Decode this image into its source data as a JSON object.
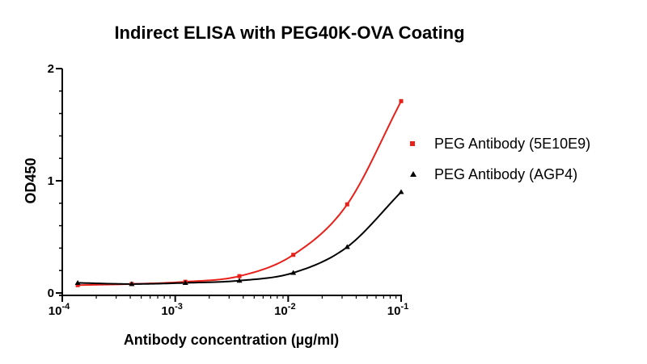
{
  "chart_data": {
    "type": "scatter",
    "title": "Indirect ELISA with PEG40K-OVA Coating",
    "xlabel": "Antibody concentration (µg/ml)",
    "ylabel": "OD450",
    "xscale": "log",
    "xlim": [
      0.0001,
      0.1
    ],
    "ylim": [
      0,
      2
    ],
    "x_ticks": [
      {
        "value": 0.0001,
        "base": "10",
        "exp": "-4"
      },
      {
        "value": 0.001,
        "base": "10",
        "exp": "-3"
      },
      {
        "value": 0.01,
        "base": "10",
        "exp": "-2"
      },
      {
        "value": 0.1,
        "base": "10",
        "exp": "-1"
      }
    ],
    "y_ticks": [
      {
        "value": 0,
        "label": "0"
      },
      {
        "value": 1,
        "label": "1"
      },
      {
        "value": 2,
        "label": "2"
      }
    ],
    "grid": false,
    "legend_position": "right",
    "series": [
      {
        "name": "PEG Antibody (5E10E9)",
        "color": "#e8201a",
        "marker": "square",
        "x": [
          0.000137,
          0.000412,
          0.00123,
          0.0037,
          0.0111,
          0.0333,
          0.1
        ],
        "y": [
          0.07,
          0.08,
          0.1,
          0.15,
          0.34,
          0.79,
          1.71
        ]
      },
      {
        "name": "PEG Antibody (AGP4)",
        "color": "#000000",
        "marker": "triangle",
        "x": [
          0.000137,
          0.000412,
          0.00123,
          0.0037,
          0.0111,
          0.0333,
          0.1
        ],
        "y": [
          0.09,
          0.08,
          0.09,
          0.11,
          0.18,
          0.41,
          0.9
        ]
      }
    ]
  }
}
